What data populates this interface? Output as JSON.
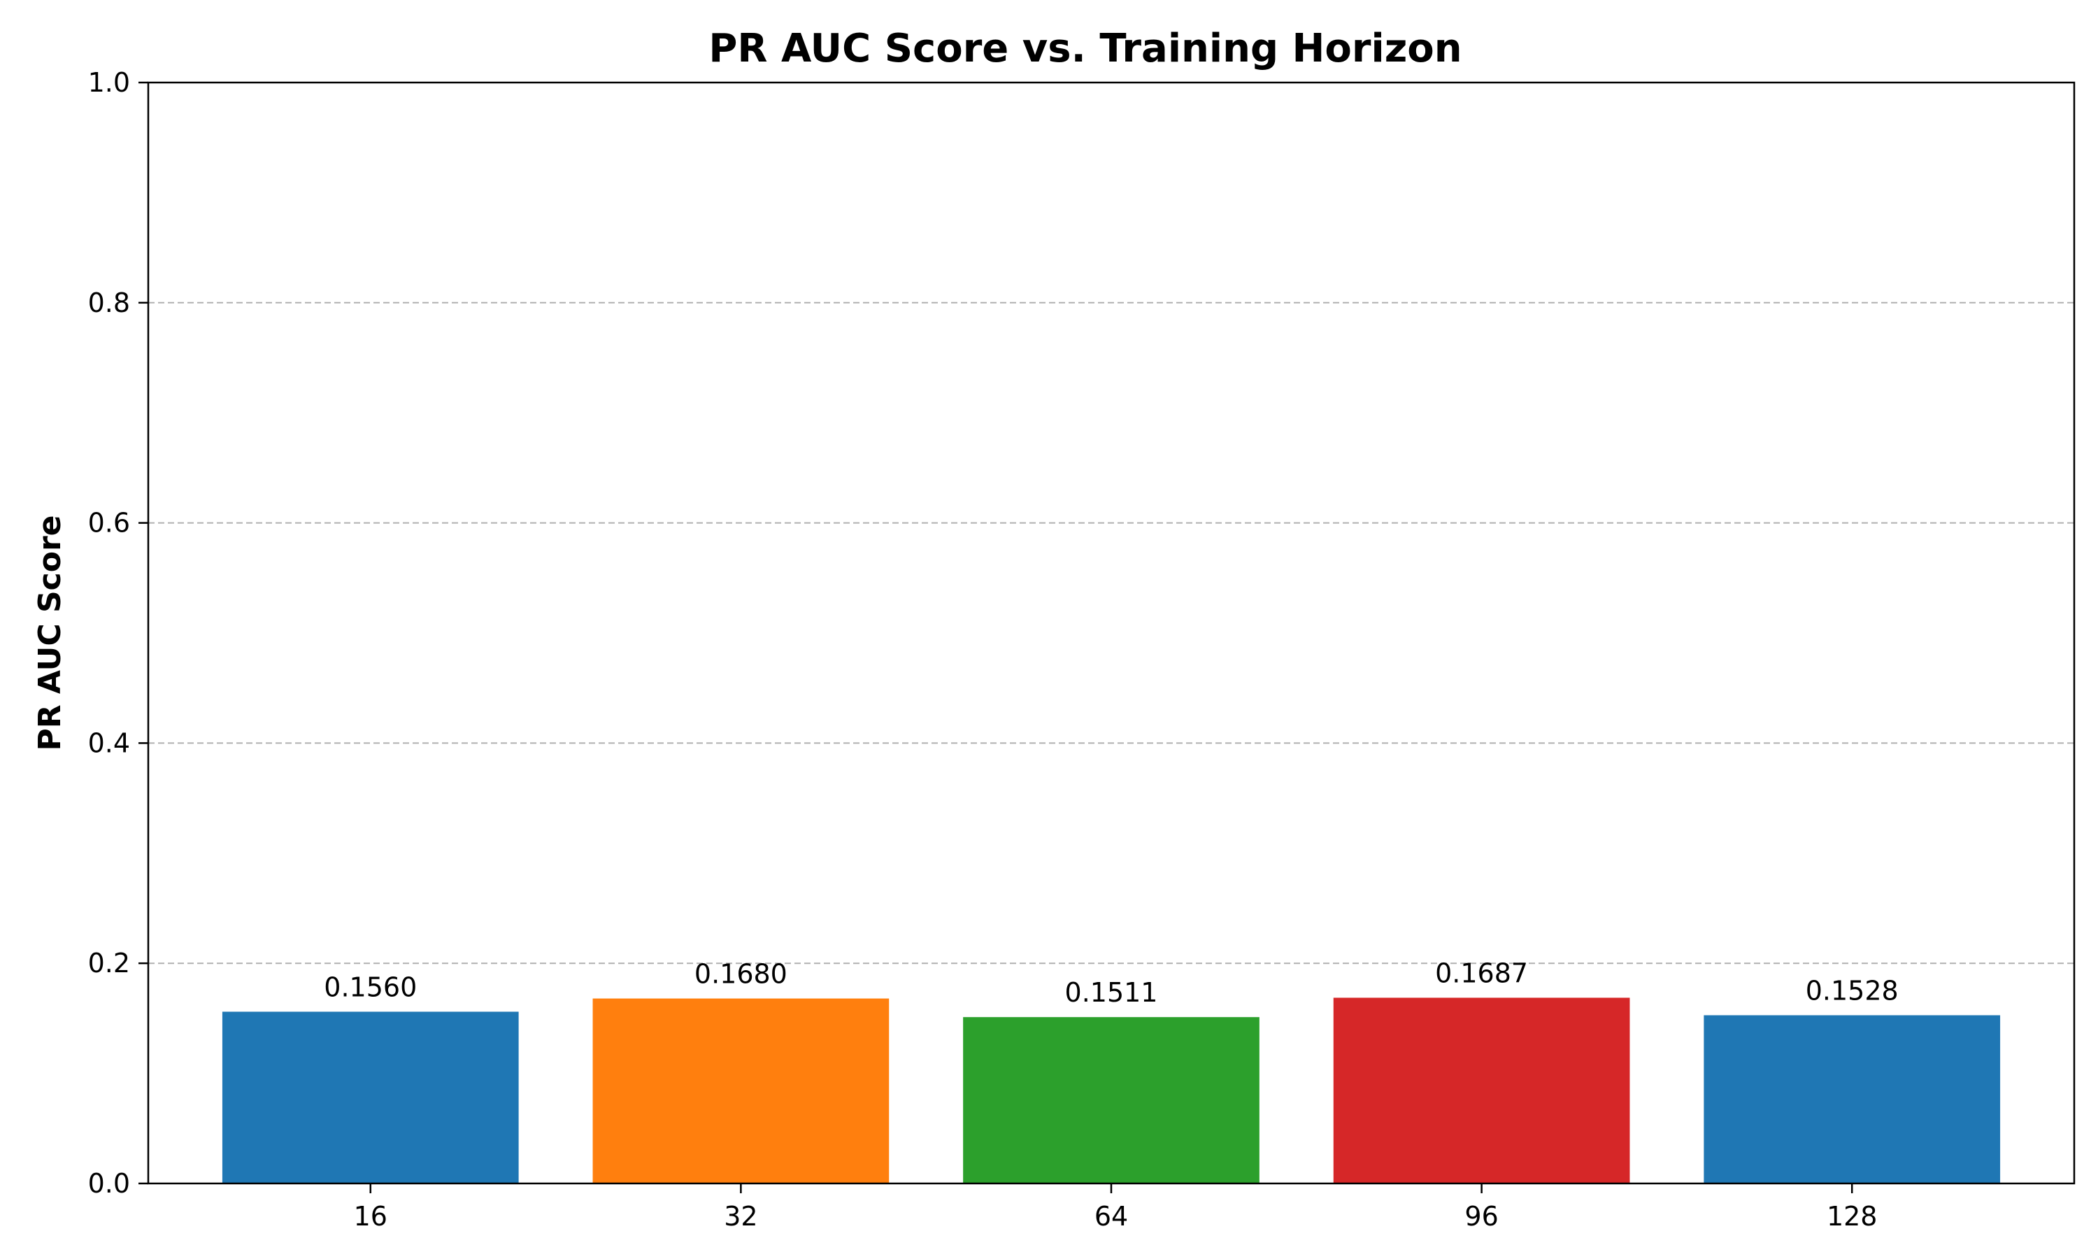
{
  "chart_data": {
    "type": "bar",
    "title": "PR AUC Score vs. Training Horizon",
    "xlabel": "",
    "ylabel": "PR AUC Score",
    "categories": [
      "16",
      "32",
      "64",
      "96",
      "128"
    ],
    "values": [
      0.156,
      0.168,
      0.1511,
      0.1687,
      0.1528
    ],
    "value_labels": [
      "0.1560",
      "0.1680",
      "0.1511",
      "0.1687",
      "0.1528"
    ],
    "bar_colors": [
      "#1f77b4",
      "#ff7f0e",
      "#2ca02c",
      "#d62728",
      "#1f77b4"
    ],
    "ylim": [
      0,
      1.0
    ],
    "yticks": [
      "0.0",
      "0.2",
      "0.4",
      "0.6",
      "0.8",
      "1.0"
    ],
    "ytick_values": [
      0.0,
      0.2,
      0.4,
      0.6,
      0.8,
      1.0
    ],
    "grid": "y-dashed",
    "legend": "none"
  }
}
